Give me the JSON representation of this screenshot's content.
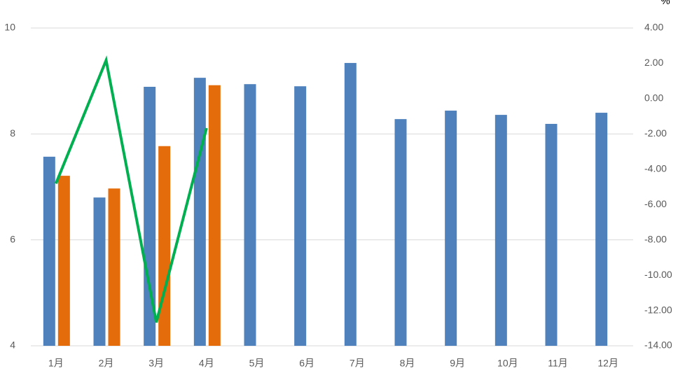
{
  "chart_data": {
    "type": "bar_line",
    "y2_title": "%",
    "categories": [
      "1月",
      "2月",
      "3月",
      "4月",
      "5月",
      "6月",
      "7月",
      "8月",
      "9月",
      "10月",
      "11月",
      "12月"
    ],
    "series": [
      {
        "color": "#4f81bd",
        "values": [
          7.57,
          6.8,
          8.89,
          9.06,
          8.94,
          8.9,
          9.34,
          8.28,
          8.44,
          8.36,
          8.19,
          8.4
        ]
      },
      {
        "color": "#e46c0a",
        "values": [
          7.21,
          6.97,
          7.77,
          8.92,
          null,
          null,
          null,
          null,
          null,
          null,
          null,
          null
        ]
      },
      {
        "color": "#00b050",
        "axis": "y2",
        "type": "line",
        "values": [
          -4.81,
          2.17,
          -12.67,
          -1.67,
          null,
          null,
          null,
          null,
          null,
          null,
          null,
          null
        ]
      }
    ],
    "ylim": [
      4,
      10
    ],
    "yticks": [
      4,
      6,
      8,
      10
    ],
    "y2lim": [
      -14,
      4
    ],
    "y2ticks": [
      {
        "value": -14,
        "label": "-14.00"
      },
      {
        "value": -12,
        "label": "-12.00"
      },
      {
        "value": -10,
        "label": "-10.00"
      },
      {
        "value": -8,
        "label": "-8.00"
      },
      {
        "value": -6,
        "label": "-6.00"
      },
      {
        "value": -4,
        "label": "-4.00"
      },
      {
        "value": -2,
        "label": "-2.00"
      },
      {
        "value": 0,
        "label": "0.00"
      },
      {
        "value": 2,
        "label": "2.00"
      },
      {
        "value": 4,
        "label": "4.00"
      }
    ],
    "grid": true
  }
}
